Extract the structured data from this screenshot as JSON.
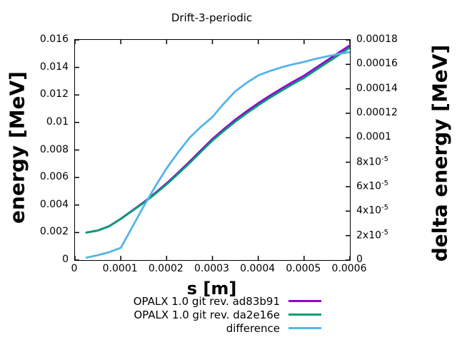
{
  "chart_data": {
    "type": "line",
    "title": "Drift-3-periodic",
    "xlabel": "s [m]",
    "ylabel_left": "energy [MeV]",
    "ylabel_right": "delta energy [MeV]",
    "grid": false,
    "legend_position": "below-plot-right",
    "x_range": [
      0,
      0.0006
    ],
    "y_left_range": [
      0,
      0.016
    ],
    "y_right_range": [
      0,
      0.00018
    ],
    "x_ticks": {
      "values": [
        0,
        0.0001,
        0.0002,
        0.0003,
        0.0004,
        0.0005,
        0.0006
      ],
      "labels": [
        "0",
        "0.0001",
        "0.0002",
        "0.0003",
        "0.0004",
        "0.0005",
        "0.0006"
      ]
    },
    "y_left_ticks": {
      "values": [
        0,
        0.002,
        0.004,
        0.006,
        0.008,
        0.01,
        0.012,
        0.014,
        0.016
      ],
      "labels": [
        "0",
        "0.002",
        "0.004",
        "0.006",
        "0.008",
        "0.01",
        "0.012",
        "0.014",
        "0.016"
      ]
    },
    "y_right_ticks": {
      "values": [
        0,
        2e-05,
        4e-05,
        6e-05,
        8e-05,
        0.0001,
        0.00012,
        0.00014,
        0.00016,
        0.00018
      ],
      "labels": [
        "0",
        "2x10^-5",
        "4x10^-5",
        "6x10^-5",
        "8x10^-5",
        "0.0001",
        "0.00012",
        "0.00014",
        "0.00016",
        "0.00018"
      ]
    },
    "x": [
      2.5e-05,
      5e-05,
      7.5e-05,
      0.0001,
      0.000125,
      0.00015,
      0.000175,
      0.0002,
      0.000225,
      0.00025,
      0.000275,
      0.0003,
      0.000325,
      0.00035,
      0.000375,
      0.0004,
      0.000425,
      0.00045,
      0.000475,
      0.0005,
      0.000525,
      0.00055,
      0.000575,
      0.0006
    ],
    "series": [
      {
        "name": "OPALX 1.0 git rev. ad83b91",
        "color": "#9400d3",
        "axis": "left",
        "values": [
          0.002,
          0.00215,
          0.00247,
          0.003,
          0.0036,
          0.0042,
          0.00487,
          0.00558,
          0.00635,
          0.00715,
          0.00798,
          0.0088,
          0.00952,
          0.0102,
          0.01082,
          0.0114,
          0.01194,
          0.01245,
          0.01294,
          0.0134,
          0.01396,
          0.01451,
          0.01506,
          0.0156
        ]
      },
      {
        "name": "OPALX 1.0 git rev. da2e16e",
        "color": "#009e73",
        "axis": "left",
        "values": [
          0.001998,
          0.002146,
          0.002464,
          0.00299,
          0.003573,
          0.004156,
          0.00481,
          0.005505,
          0.006262,
          0.00705,
          0.007871,
          0.008683,
          0.009392,
          0.010062,
          0.010675,
          0.011249,
          0.011786,
          0.012293,
          0.01278,
          0.013238,
          0.013796,
          0.014344,
          0.014892,
          0.01543
        ]
      },
      {
        "name": "difference",
        "color": "#56b4e9",
        "axis": "right",
        "values": [
          2e-06,
          4e-06,
          6.5e-06,
          1e-05,
          2.7e-05,
          4.4e-05,
          6e-05,
          7.5e-05,
          8.8e-05,
          0.0001,
          0.000109,
          0.000117,
          0.000128,
          0.000138,
          0.000145,
          0.000151,
          0.0001545,
          0.0001575,
          0.00016,
          0.000162,
          0.0001645,
          0.0001665,
          0.0001685,
          0.00017
        ]
      }
    ],
    "line_width": 2.8,
    "colors": {
      "background": "#ffffff",
      "border": "#000000",
      "text": "#000000"
    }
  }
}
